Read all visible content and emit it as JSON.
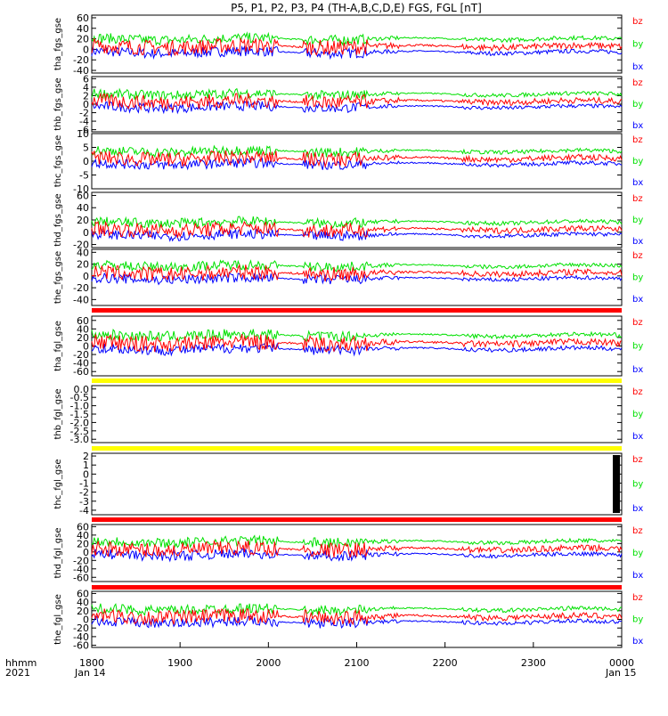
{
  "title": "P5, P1, P2, P3, P4 (TH-A,B,C,D,E) FGS, FGL [nT]",
  "colors": {
    "bx": "#0000ff",
    "by": "#00e000",
    "bz": "#ff0000",
    "bar_red": "#ff0000",
    "bar_yellow": "#ffff00",
    "axis": "#000000"
  },
  "legend": [
    "bz",
    "by",
    "bx"
  ],
  "time_axis": {
    "row_label_1": "hhmm",
    "row_label_2": "2021",
    "ticks": [
      "1800",
      "1900",
      "2000",
      "2100",
      "2200",
      "2300",
      "0000"
    ],
    "date_start": "Jan 14",
    "date_end": "Jan 15"
  },
  "chart_data": [
    {
      "type": "line",
      "ylabel": "tha_fgs_gse",
      "ylim": [
        -45,
        65
      ],
      "yticks": [
        "60",
        "40",
        "20",
        "0",
        "-20",
        "-40"
      ],
      "series": [
        "bx",
        "by",
        "bz"
      ]
    },
    {
      "type": "line",
      "ylabel": "thb_fgs_gse",
      "ylim": [
        -6.5,
        6.5
      ],
      "yticks": [
        "6",
        "4",
        "2",
        "0",
        "-2",
        "-4",
        "-6"
      ],
      "series": [
        "bx",
        "by",
        "bz"
      ]
    },
    {
      "type": "line",
      "ylabel": "thc_fgs_gse",
      "ylim": [
        -10,
        10
      ],
      "yticks": [
        "10",
        "5",
        "0",
        "-5",
        "-10"
      ],
      "series": [
        "bx",
        "by",
        "bz"
      ]
    },
    {
      "type": "line",
      "ylabel": "thd_fgs_gse",
      "ylim": [
        -25,
        65
      ],
      "yticks": [
        "60",
        "40",
        "20",
        "0",
        "-20"
      ],
      "series": [
        "bx",
        "by",
        "bz"
      ]
    },
    {
      "type": "line",
      "ylabel": "the_fgs_gse",
      "ylim": [
        -50,
        45
      ],
      "yticks": [
        "40",
        "20",
        "0",
        "-20",
        "-40"
      ],
      "series": [
        "bx",
        "by",
        "bz"
      ]
    },
    {
      "type": "line",
      "ylabel": "tha_fgl_gse",
      "ylim": [
        -70,
        70
      ],
      "yticks": [
        "60",
        "40",
        "20",
        "0",
        "-20",
        "-40",
        "-60"
      ],
      "series": [
        "bx",
        "by",
        "bz"
      ]
    },
    {
      "type": "line",
      "ylabel": "thb_fgl_gse",
      "ylim": [
        -3.2,
        0.2
      ],
      "yticks": [
        "0.0",
        "-0.5",
        "-1.0",
        "-1.5",
        "-2.0",
        "-2.5",
        "-3.0"
      ],
      "series": []
    },
    {
      "type": "line",
      "ylabel": "thc_fgl_gse",
      "ylim": [
        -4.5,
        2.3
      ],
      "yticks": [
        "2",
        "1",
        "0",
        "-1",
        "-2",
        "-3",
        "-4"
      ],
      "series": []
    },
    {
      "type": "line",
      "ylabel": "thd_fgl_gse",
      "ylim": [
        -70,
        65
      ],
      "yticks": [
        "60",
        "40",
        "20",
        "0",
        "-20",
        "-40",
        "-60"
      ],
      "series": [
        "bx",
        "by",
        "bz"
      ]
    },
    {
      "type": "line",
      "ylabel": "the_fgl_gse",
      "ylim": [
        -65,
        65
      ],
      "yticks": [
        "60",
        "40",
        "20",
        "0",
        "-20",
        "-40",
        "-60"
      ],
      "series": [
        "bx",
        "by",
        "bz"
      ]
    }
  ]
}
